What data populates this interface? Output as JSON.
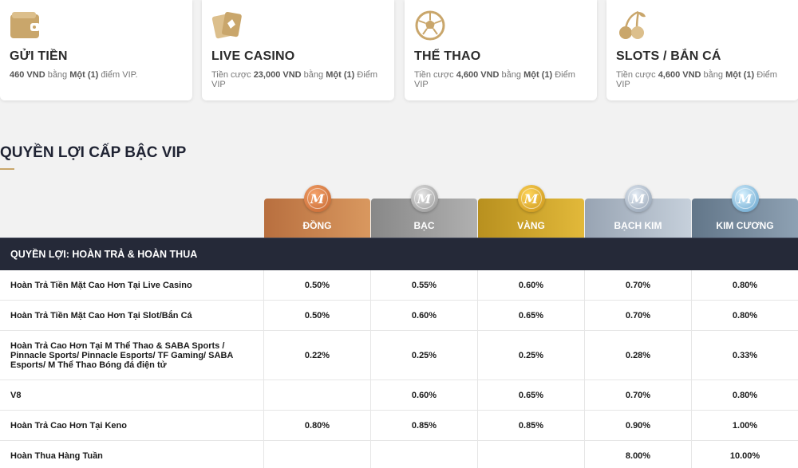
{
  "cards": [
    {
      "title": "GỬI TIỀN",
      "desc_pre": "",
      "amount": "460 VND",
      "mid": " bằng ",
      "unit": "Một (1)",
      "post": " điểm VIP.",
      "icon": "wallet-icon"
    },
    {
      "title": "LIVE CASINO",
      "desc_pre": "Tiền cược ",
      "amount": "23,000 VND",
      "mid": " bằng ",
      "unit": "Một (1)",
      "post": " Điểm VIP",
      "icon": "playing-cards-icon"
    },
    {
      "title": "THỂ THAO",
      "desc_pre": "Tiền cược ",
      "amount": "4,600 VND",
      "mid": " bằng ",
      "unit": "Một (1)",
      "post": " Điểm VIP",
      "icon": "soccer-ball-icon"
    },
    {
      "title": "SLOTS / BẮN CÁ",
      "desc_pre": "Tiền cược ",
      "amount": "4,600 VND",
      "mid": " bằng ",
      "unit": "Một (1)",
      "post": " Điểm VIP",
      "icon": "cherries-icon"
    }
  ],
  "section_title": "QUYỀN LỢI CẤP BẬC VIP",
  "tiers": [
    {
      "name": "ĐỒNG",
      "medal": "M"
    },
    {
      "name": "BẠC",
      "medal": "M"
    },
    {
      "name": "VÀNG",
      "medal": "M"
    },
    {
      "name": "BẠCH KIM",
      "medal": "M"
    },
    {
      "name": "KIM CƯƠNG",
      "medal": "M"
    }
  ],
  "table_header": "QUYỀN LỢI: HOÀN TRẢ & HOÀN THUA",
  "rows": [
    {
      "label": "Hoàn Trả Tiền Mặt Cao Hơn Tại Live Casino",
      "values": [
        "0.50%",
        "0.55%",
        "0.60%",
        "0.70%",
        "0.80%"
      ]
    },
    {
      "label": "Hoàn Trả Tiền Mặt Cao Hơn Tại Slot/Bắn Cá",
      "values": [
        "0.50%",
        "0.60%",
        "0.65%",
        "0.70%",
        "0.80%"
      ]
    },
    {
      "label": "Hoàn Trả Cao Hơn Tại M Thể Thao & SABA Sports / Pinnacle Sports/ Pinnacle Esports/ TF Gaming/ SABA Esports/ M Thể Thao Bóng đá điện tử",
      "values": [
        "0.22%",
        "0.25%",
        "0.25%",
        "0.28%",
        "0.33%"
      ]
    },
    {
      "label": "V8",
      "values": [
        "",
        "0.60%",
        "0.65%",
        "0.70%",
        "0.80%"
      ]
    },
    {
      "label": "Hoàn Trả Cao Hơn Tại Keno",
      "values": [
        "0.80%",
        "0.85%",
        "0.85%",
        "0.90%",
        "1.00%"
      ]
    },
    {
      "label": "Hoàn Thua Hàng Tuần",
      "values": [
        "",
        "",
        "",
        "8.00%",
        "10.00%"
      ]
    }
  ],
  "colors": {
    "accent_gold": "#c9a66b",
    "table_header_bg": "#252938",
    "tier_bronze": "#c98652",
    "tier_silver": "#9a9a9a",
    "tier_gold": "#cfa52e",
    "tier_platinum": "#a9b4c2",
    "tier_diamond": "#6f8497"
  }
}
